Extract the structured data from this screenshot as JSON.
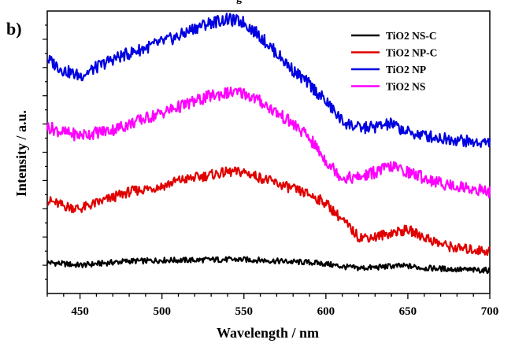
{
  "panel_label": "b)",
  "cropped_title_fragment": "g",
  "chart_data": {
    "type": "line",
    "title": "",
    "xlabel": "Wavelength / nm",
    "ylabel": "Intensity / a.u.",
    "xlim": [
      430,
      700
    ],
    "ylim": [
      0,
      1
    ],
    "x_ticks": [
      450,
      500,
      550,
      600,
      650,
      700
    ],
    "y_tick_labels_shown": false,
    "grid": false,
    "legend_position": "top-right",
    "x": [
      430,
      440,
      450,
      460,
      470,
      480,
      490,
      500,
      510,
      520,
      530,
      540,
      550,
      560,
      570,
      580,
      590,
      600,
      610,
      620,
      630,
      640,
      650,
      660,
      670,
      680,
      690,
      700
    ],
    "series": [
      {
        "name": "TiO2 NS-C",
        "color": "#000000",
        "values": [
          0.11,
          0.105,
          0.1,
          0.105,
          0.11,
          0.115,
          0.115,
          0.118,
          0.118,
          0.118,
          0.12,
          0.12,
          0.12,
          0.118,
          0.115,
          0.112,
          0.11,
          0.105,
          0.095,
          0.09,
          0.092,
          0.097,
          0.097,
          0.09,
          0.088,
          0.085,
          0.083,
          0.082
        ]
      },
      {
        "name": "TiO2 NP-C",
        "color": "#e00000",
        "values": [
          0.33,
          0.31,
          0.3,
          0.32,
          0.34,
          0.36,
          0.37,
          0.38,
          0.4,
          0.41,
          0.42,
          0.43,
          0.43,
          0.41,
          0.39,
          0.37,
          0.35,
          0.32,
          0.26,
          0.2,
          0.2,
          0.215,
          0.225,
          0.2,
          0.175,
          0.16,
          0.155,
          0.15
        ]
      },
      {
        "name": "TiO2 NP",
        "color": "#0000e0",
        "values": [
          0.83,
          0.79,
          0.77,
          0.8,
          0.83,
          0.85,
          0.87,
          0.89,
          0.91,
          0.94,
          0.96,
          0.97,
          0.96,
          0.91,
          0.85,
          0.79,
          0.74,
          0.68,
          0.61,
          0.585,
          0.59,
          0.6,
          0.57,
          0.56,
          0.55,
          0.545,
          0.535,
          0.535
        ]
      },
      {
        "name": "TiO2 NS",
        "color": "#ff00ff",
        "values": [
          0.59,
          0.57,
          0.56,
          0.57,
          0.58,
          0.6,
          0.62,
          0.64,
          0.66,
          0.68,
          0.7,
          0.71,
          0.71,
          0.68,
          0.64,
          0.6,
          0.55,
          0.47,
          0.41,
          0.41,
          0.43,
          0.45,
          0.43,
          0.41,
          0.39,
          0.38,
          0.37,
          0.36
        ]
      }
    ]
  }
}
